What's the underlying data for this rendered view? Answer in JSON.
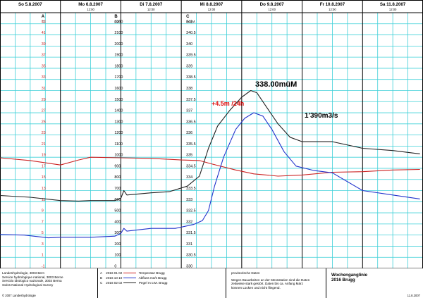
{
  "chart_data": {
    "type": "line",
    "days": [
      {
        "label": "So  5.8.2007",
        "time": ""
      },
      {
        "label": "Mo  6.8.2007",
        "time": "12:00"
      },
      {
        "label": "Di  7.8.2007",
        "time": "12:00"
      },
      {
        "label": "Mi  8.8.2007",
        "time": "12:00"
      },
      {
        "label": "Do  9.8.2007",
        "time": "12:00"
      },
      {
        "label": "Fr  10.8.2007",
        "time": "12:00"
      },
      {
        "label": "Sa  11.8.2007",
        "time": "12:00"
      }
    ],
    "x_range_days": [
      0,
      7
    ],
    "axes": [
      {
        "letter": "A",
        "unit": "°C",
        "min": -1,
        "max": 45,
        "ticks": [
          -1,
          1,
          3,
          5,
          7,
          9,
          11,
          13,
          15,
          17,
          19,
          21,
          23,
          25,
          27,
          29,
          31,
          33,
          35,
          37,
          39,
          41,
          43
        ]
      },
      {
        "letter": "B",
        "unit": "m3/s",
        "min": 0,
        "max": 2300,
        "ticks": [
          0,
          100,
          200,
          300,
          400,
          500,
          600,
          700,
          800,
          900,
          1000,
          1100,
          1200,
          1300,
          1400,
          1500,
          1600,
          1700,
          1800,
          1900,
          2000,
          2100,
          2200
        ]
      },
      {
        "letter": "C",
        "unit": "m ü.M.",
        "min": 330,
        "max": 341.5,
        "ticks": [
          330,
          330.5,
          331,
          331.5,
          332,
          332.5,
          333,
          333.5,
          334,
          334.5,
          335,
          335.5,
          336,
          336.5,
          337,
          337.5,
          338,
          338.5,
          339,
          339.5,
          340,
          340.5,
          341
        ]
      }
    ],
    "series": [
      {
        "name": "Temperatur Brugg",
        "axis": 0,
        "color": "#cc2222",
        "points": [
          [
            0,
            18.9
          ],
          [
            0.5,
            18.4
          ],
          [
            1,
            17.6
          ],
          [
            1.3,
            18.5
          ],
          [
            1.5,
            19.0
          ],
          [
            2,
            18.9
          ],
          [
            2.5,
            18.8
          ],
          [
            3,
            18.5
          ],
          [
            3.3,
            18.4
          ],
          [
            3.5,
            17.8
          ],
          [
            3.9,
            16.7
          ],
          [
            4.2,
            16.0
          ],
          [
            4.6,
            15.6
          ],
          [
            5,
            15.8
          ],
          [
            5.5,
            16.3
          ],
          [
            6,
            16.4
          ],
          [
            6.5,
            16.7
          ],
          [
            6.95,
            16.8
          ]
        ]
      },
      {
        "name": "Abfluss m3/s Brugg",
        "axis": 1,
        "color": "#2233cc",
        "points": [
          [
            0,
            305
          ],
          [
            0.4,
            300
          ],
          [
            0.8,
            275
          ],
          [
            1,
            280
          ],
          [
            1.5,
            280
          ],
          [
            1.9,
            290
          ],
          [
            2,
            315
          ],
          [
            2.05,
            360
          ],
          [
            2.1,
            335
          ],
          [
            2.5,
            360
          ],
          [
            2.9,
            360
          ],
          [
            3.2,
            395
          ],
          [
            3.35,
            430
          ],
          [
            3.45,
            520
          ],
          [
            3.55,
            740
          ],
          [
            3.7,
            1000
          ],
          [
            3.9,
            1250
          ],
          [
            4.05,
            1350
          ],
          [
            4.2,
            1400
          ],
          [
            4.35,
            1370
          ],
          [
            4.5,
            1250
          ],
          [
            4.7,
            1050
          ],
          [
            4.9,
            920
          ],
          [
            5.2,
            880
          ],
          [
            5.5,
            860
          ],
          [
            6,
            700
          ],
          [
            6.5,
            660
          ],
          [
            6.95,
            625
          ]
        ]
      },
      {
        "name": "Pegel m ü.M. Brugg",
        "axis": 2,
        "color": "#222222",
        "points": [
          [
            0,
            333.28
          ],
          [
            0.5,
            333.2
          ],
          [
            1,
            333.05
          ],
          [
            1.3,
            333.03
          ],
          [
            1.5,
            333.05
          ],
          [
            1.9,
            333.05
          ],
          [
            2,
            333.15
          ],
          [
            2.05,
            333.5
          ],
          [
            2.1,
            333.3
          ],
          [
            2.5,
            333.4
          ],
          [
            2.8,
            333.45
          ],
          [
            3.1,
            333.7
          ],
          [
            3.3,
            334.15
          ],
          [
            3.45,
            335.4
          ],
          [
            3.6,
            336.4
          ],
          [
            3.8,
            337.1
          ],
          [
            4,
            337.7
          ],
          [
            4.15,
            338.0
          ],
          [
            4.25,
            337.9
          ],
          [
            4.4,
            337.3
          ],
          [
            4.6,
            336.5
          ],
          [
            4.8,
            335.9
          ],
          [
            5,
            335.7
          ],
          [
            5.5,
            335.7
          ],
          [
            6,
            335.4
          ],
          [
            6.5,
            335.3
          ],
          [
            6.95,
            335.15
          ]
        ]
      }
    ],
    "annotations": {
      "rise": "+4.5m /24h",
      "peak_level": "338.00müM",
      "peak_flow": "1'390m3/s"
    },
    "grid": true
  },
  "footer": {
    "org": [
      "Landeshydrologie, 3003 Bern",
      "Service hydrologique national, 3003 Berne",
      "Servizio idrologico nazionale, 3003 Berna",
      "Swiss National Hydrological Survey"
    ],
    "copyright": "© 2007 Landeshydrologie",
    "legend": [
      {
        "letter": "A",
        "code": "2016 01 02",
        "label": "Temperatur Brugg",
        "color": "#cc2222"
      },
      {
        "letter": "B",
        "code": "2016 10 10",
        "label": "Abfluss m3/s Brugg",
        "color": "#2233cc"
      },
      {
        "letter": "C",
        "code": "2016 02 02",
        "label": "Pegel m ü.M. Brugg",
        "color": "#222222"
      }
    ],
    "note_title": "provisorische Daten",
    "note_text": [
      "Wegen Bauarbeiten an der Messstation sind die Daten",
      "zeitweise stark gestört. Daten bis ca. Anfang März",
      "können Lücken und nicht fliegend."
    ],
    "title": [
      "Wochenganglinie",
      "2016 Brugg"
    ],
    "date": "11.8.2007"
  }
}
